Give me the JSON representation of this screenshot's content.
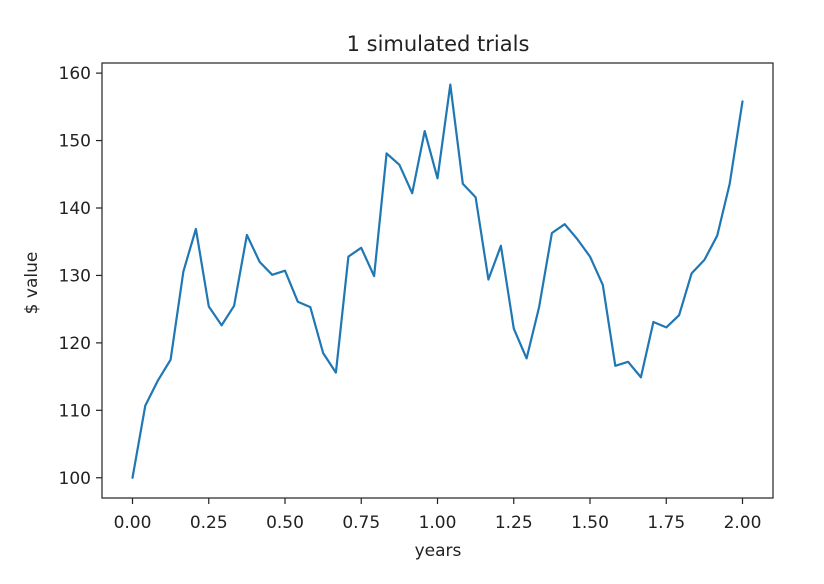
{
  "chart_data": {
    "type": "line",
    "title": "1 simulated trials",
    "xlabel": "years",
    "ylabel": "$ value",
    "xlim": [
      -0.1,
      2.1
    ],
    "ylim": [
      97,
      161.5
    ],
    "xticks": [
      0.0,
      0.25,
      0.5,
      0.75,
      1.0,
      1.25,
      1.5,
      1.75,
      2.0
    ],
    "xtick_labels": [
      "0.00",
      "0.25",
      "0.50",
      "0.75",
      "1.00",
      "1.25",
      "1.50",
      "1.75",
      "2.00"
    ],
    "yticks": [
      100,
      110,
      120,
      130,
      140,
      150,
      160
    ],
    "ytick_labels": [
      "100",
      "110",
      "120",
      "130",
      "140",
      "150",
      "160"
    ],
    "grid": false,
    "series": [
      {
        "color": "#1f77b4",
        "x": [
          0.0,
          0.042,
          0.083,
          0.125,
          0.167,
          0.208,
          0.25,
          0.292,
          0.333,
          0.375,
          0.417,
          0.458,
          0.5,
          0.542,
          0.583,
          0.625,
          0.667,
          0.708,
          0.75,
          0.792,
          0.833,
          0.875,
          0.917,
          0.958,
          1.0,
          1.042,
          1.083,
          1.125,
          1.167,
          1.208,
          1.25,
          1.292,
          1.333,
          1.375,
          1.417,
          1.458,
          1.5,
          1.542,
          1.583,
          1.625,
          1.667,
          1.708,
          1.75,
          1.792,
          1.833,
          1.875,
          1.917,
          1.958,
          2.0
        ],
        "y": [
          100.0,
          110.7,
          114.4,
          117.5,
          130.6,
          136.9,
          125.4,
          122.6,
          125.5,
          136.0,
          132.0,
          130.1,
          130.7,
          126.1,
          125.3,
          118.5,
          115.6,
          132.8,
          134.1,
          129.9,
          148.1,
          146.4,
          142.2,
          151.4,
          144.4,
          158.3,
          143.6,
          141.6,
          129.4,
          134.4,
          122.1,
          117.7,
          125.3,
          136.3,
          137.6,
          135.4,
          132.8,
          128.6,
          116.6,
          117.2,
          114.9,
          123.1,
          122.3,
          124.1,
          130.3,
          132.3,
          135.9,
          143.6,
          155.8
        ]
      }
    ]
  }
}
